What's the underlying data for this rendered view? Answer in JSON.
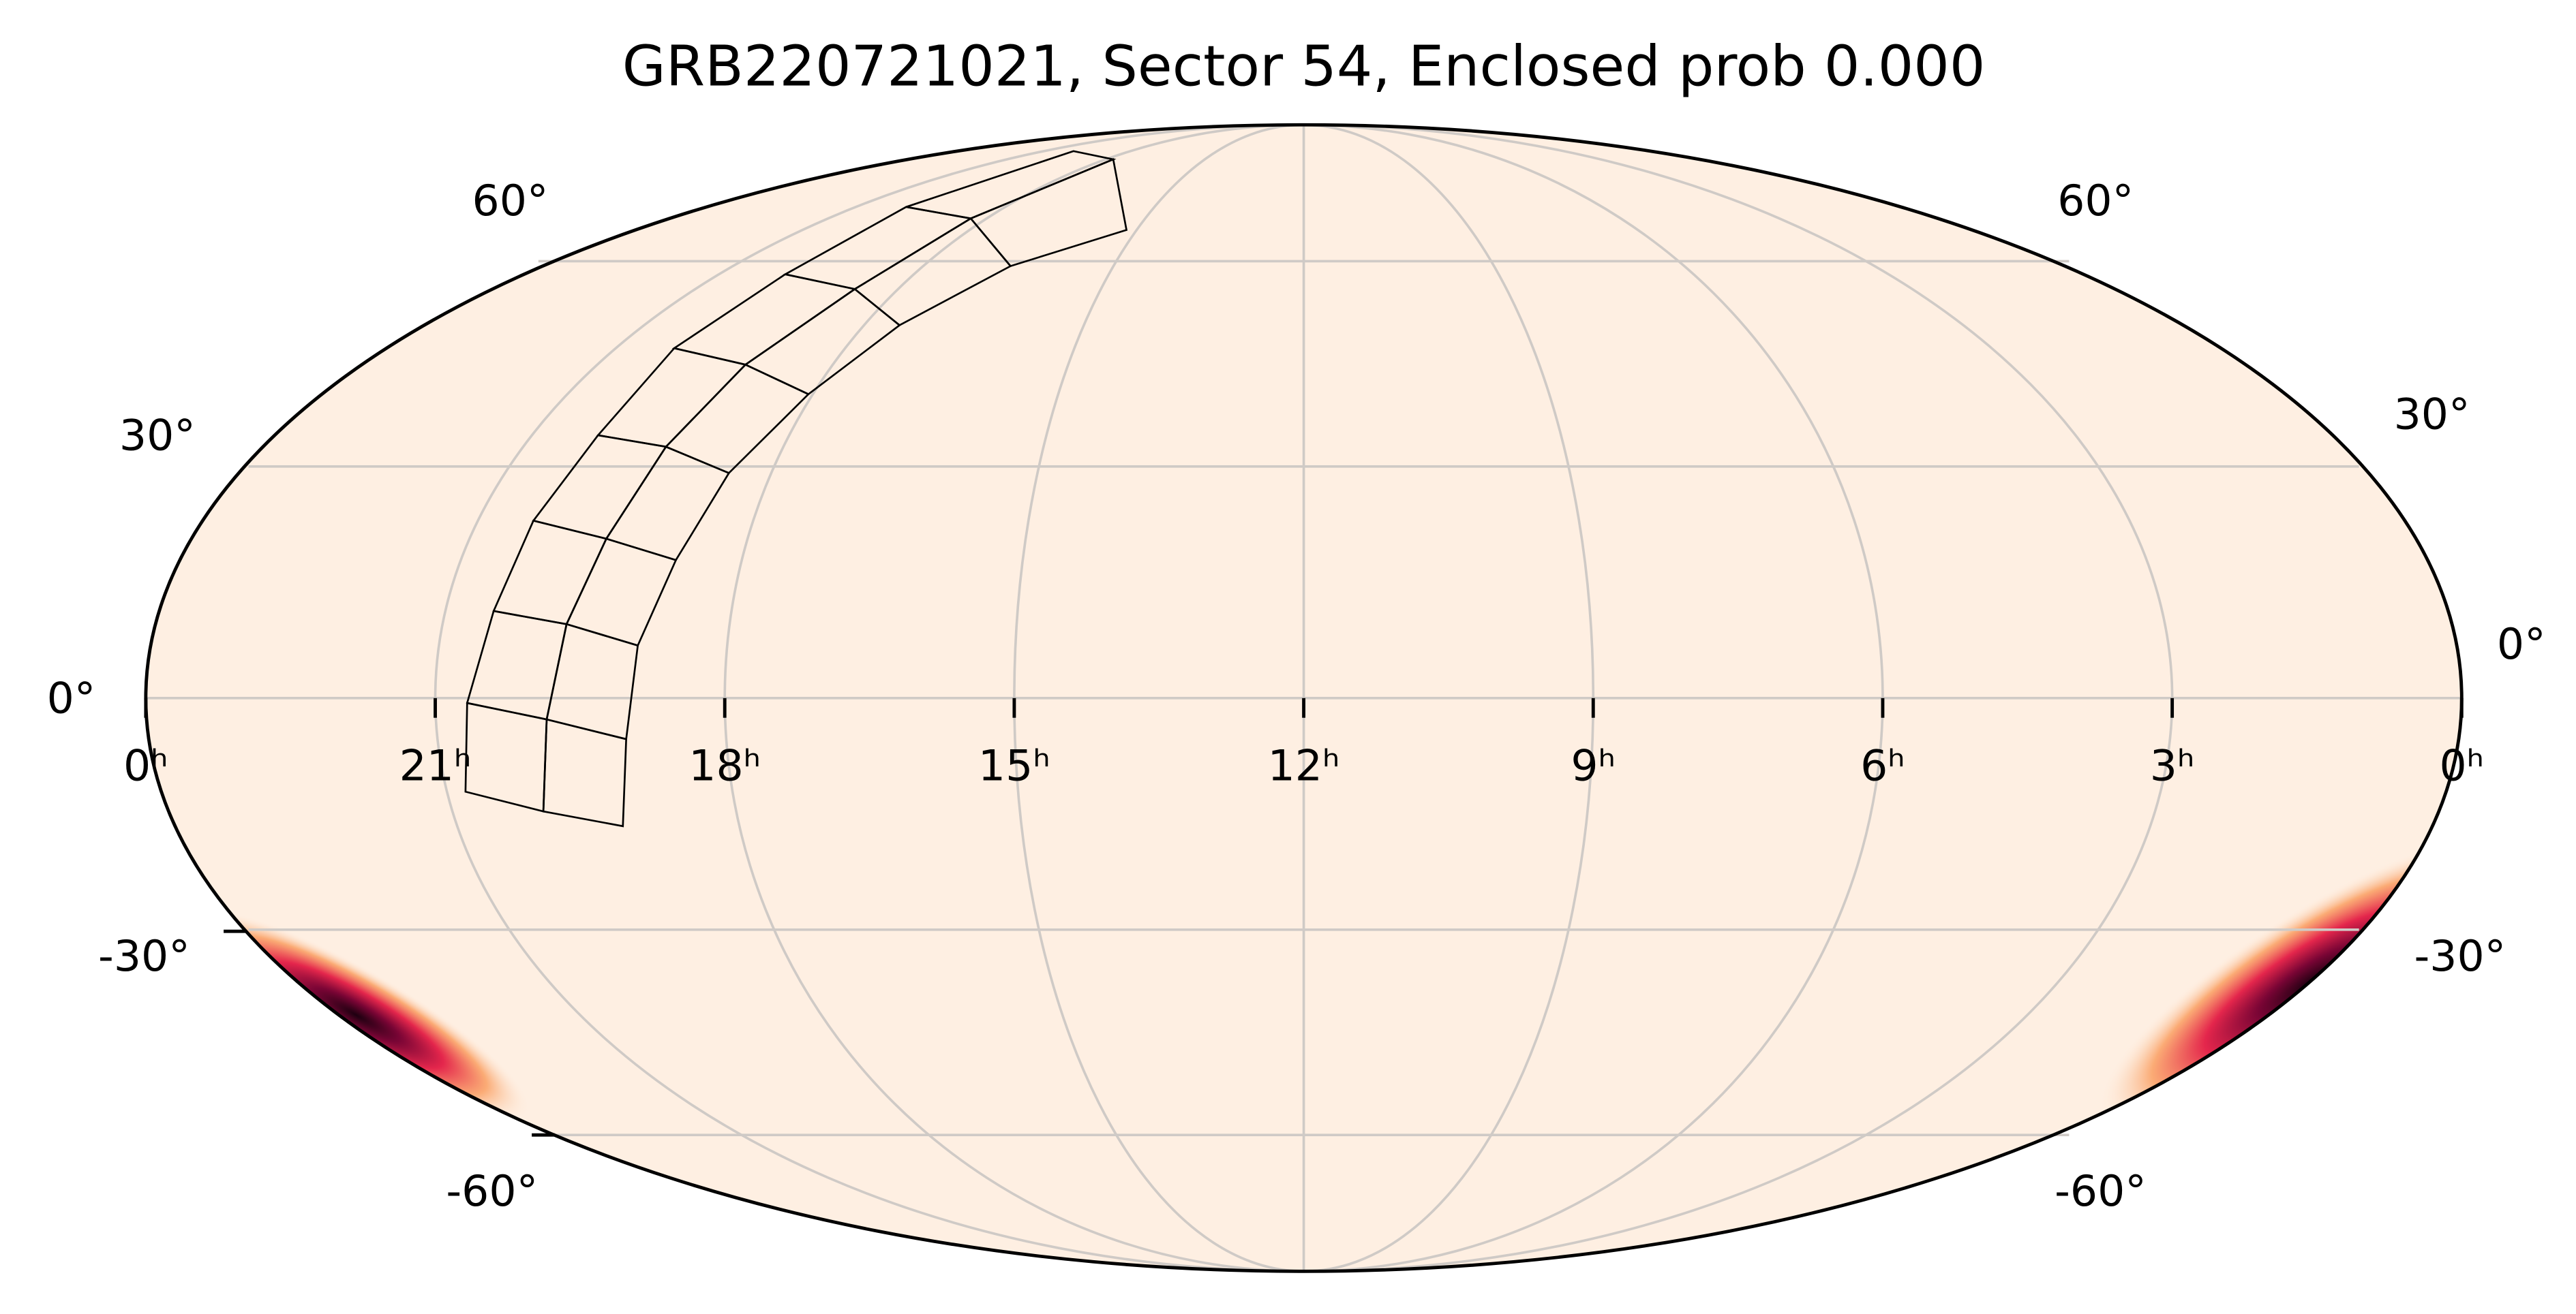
{
  "title": "GRB220721021, Sector 54, Enclosed prob 0.000",
  "ra_labels": [
    "0ʰ",
    "21ʰ",
    "18ʰ",
    "15ʰ",
    "12ʰ",
    "9ʰ",
    "6ʰ",
    "3ʰ",
    "0ʰ"
  ],
  "dec_labels_left": [
    "60°",
    "30°",
    "0°",
    "-30°",
    "-60°"
  ],
  "dec_labels_right": [
    "60°",
    "30°",
    "0°",
    "-30°",
    "-60°"
  ]
}
